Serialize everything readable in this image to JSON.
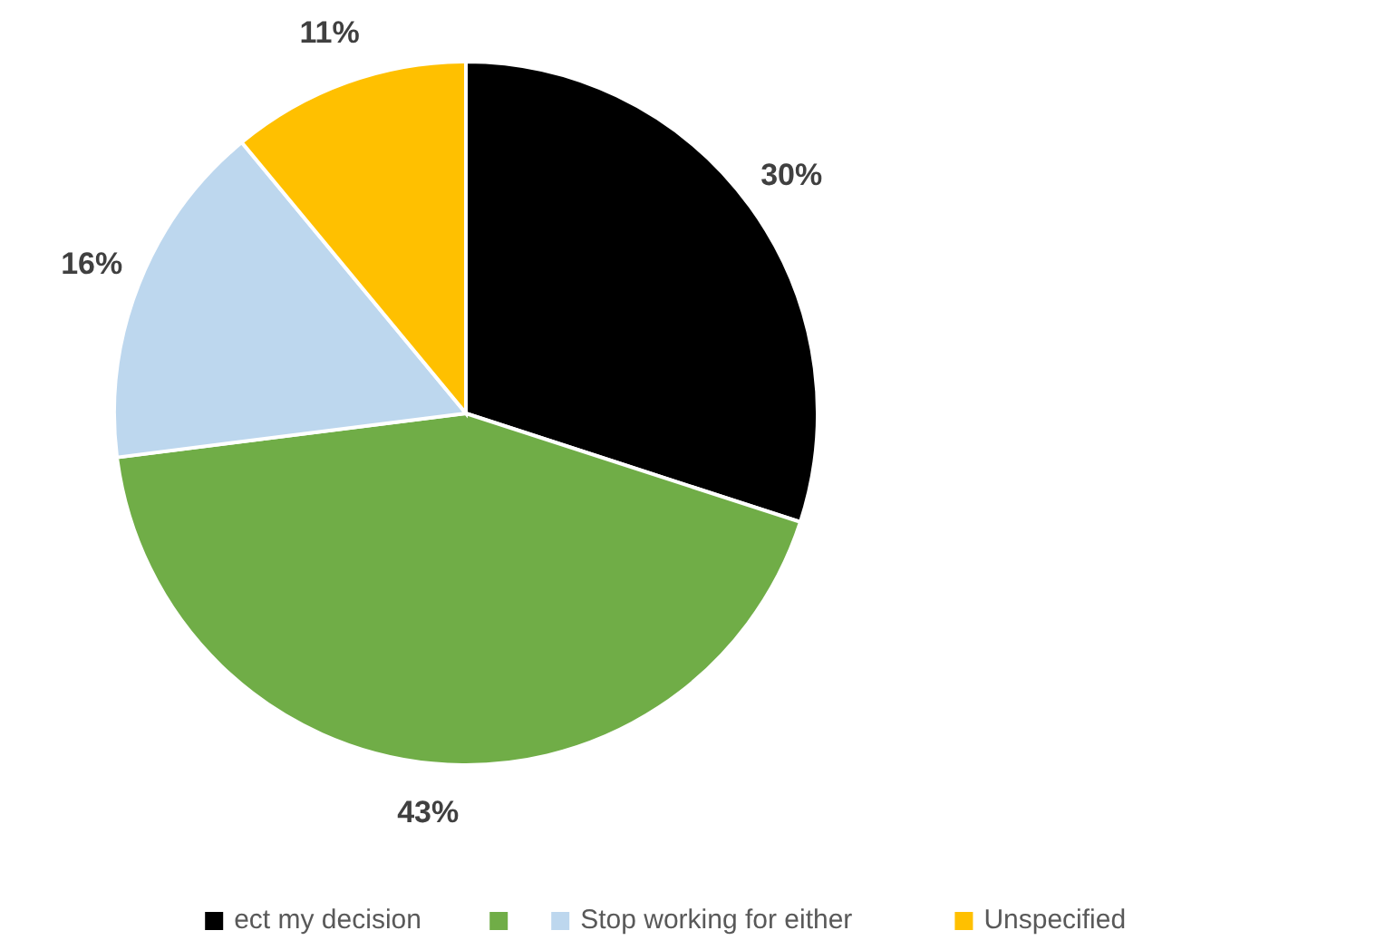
{
  "chart_data": {
    "type": "pie",
    "categories": [
      "ect my decision",
      null,
      "Stop working for either",
      "Unspecified"
    ],
    "values": [
      30,
      43,
      16,
      11
    ],
    "colors": [
      "#000000",
      "#70ad47",
      "#bdd7ee",
      "#ffc000"
    ],
    "value_labels": [
      "30%",
      "43%",
      "16%",
      "11%"
    ],
    "legend": "bottom"
  }
}
